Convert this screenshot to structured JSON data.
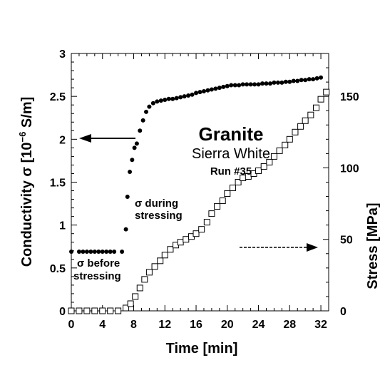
{
  "chart_data": {
    "type": "scatter",
    "title": "Granite",
    "subtitle": "Sierra White",
    "run_label": "Run #35",
    "xlabel": "Time [min]",
    "ylabel_left_prefix": "Conductivity σ [10",
    "ylabel_left_exp": "−6",
    "ylabel_left_suffix": " S/m]",
    "ylabel_right": "Stress [MPa]",
    "xlim": [
      0,
      33
    ],
    "ylim_left": [
      0,
      3
    ],
    "ylim_right": [
      0,
      180
    ],
    "x_ticks": [
      0,
      4,
      8,
      12,
      16,
      20,
      24,
      28,
      32
    ],
    "x_tick_labels": [
      "0",
      "4",
      "8",
      "12",
      "16",
      "20",
      "24",
      "28",
      "32"
    ],
    "y_left_ticks": [
      0,
      0.5,
      1,
      1.5,
      2,
      2.5,
      3
    ],
    "y_left_tick_labels": [
      "0",
      "0.5",
      "1",
      "1.5",
      "2",
      "2.5",
      "3"
    ],
    "y_right_ticks": [
      0,
      50,
      100,
      150
    ],
    "y_right_tick_labels": [
      "0",
      "50",
      "100",
      "150"
    ],
    "grid": false,
    "annotations": {
      "sigma_before_line1": "σ before",
      "sigma_before_line2": "stressing",
      "sigma_during_line1": "σ during",
      "sigma_during_line2": "stressing"
    },
    "series": [
      {
        "marker": "filled-circle",
        "axis": "left",
        "x": [
          0,
          1,
          1.5,
          2,
          2.5,
          3,
          3.5,
          4,
          4.5,
          5,
          5.5,
          6.5,
          7,
          7.2,
          7.5,
          7.8,
          8.1,
          8.4,
          8.8,
          9.2,
          9.6,
          10,
          10.5,
          11,
          11.5,
          12,
          12.5,
          13,
          13.5,
          14,
          14.5,
          15,
          15.5,
          16,
          16.5,
          17,
          17.5,
          18,
          18.5,
          19,
          19.5,
          20,
          20.5,
          21,
          21.5,
          22,
          22.5,
          23,
          23.5,
          24,
          24.5,
          25,
          25.5,
          26,
          26.5,
          27,
          27.5,
          28,
          28.5,
          29,
          29.5,
          30,
          30.5,
          31,
          31.5,
          32
        ],
        "y": [
          0.69,
          0.69,
          0.69,
          0.69,
          0.69,
          0.69,
          0.69,
          0.69,
          0.69,
          0.69,
          0.69,
          0.69,
          0.95,
          1.33,
          1.62,
          1.76,
          1.9,
          1.95,
          2.1,
          2.22,
          2.32,
          2.38,
          2.42,
          2.44,
          2.45,
          2.46,
          2.47,
          2.47,
          2.48,
          2.49,
          2.5,
          2.51,
          2.52,
          2.54,
          2.55,
          2.56,
          2.57,
          2.58,
          2.59,
          2.6,
          2.61,
          2.62,
          2.63,
          2.63,
          2.63,
          2.64,
          2.64,
          2.64,
          2.64,
          2.64,
          2.65,
          2.65,
          2.65,
          2.66,
          2.66,
          2.66,
          2.67,
          2.67,
          2.68,
          2.68,
          2.69,
          2.69,
          2.7,
          2.7,
          2.71,
          2.72
        ]
      },
      {
        "marker": "open-square",
        "axis": "right",
        "x": [
          0,
          1,
          2,
          3,
          4,
          5,
          6,
          7,
          7.6,
          8.2,
          8.8,
          9.4,
          10,
          10.7,
          11.4,
          12,
          12.7,
          13.4,
          14,
          14.7,
          15.4,
          16,
          16.7,
          17.4,
          18,
          18.7,
          19.4,
          20,
          20.7,
          21.4,
          22,
          22.7,
          23.4,
          24,
          24.7,
          25.4,
          26,
          26.7,
          27.4,
          28,
          28.7,
          29.4,
          30,
          30.7,
          31.4,
          32,
          32.7
        ],
        "y": [
          0,
          0,
          0,
          0,
          0,
          0,
          0,
          2,
          5,
          10,
          16,
          22,
          27,
          31,
          35,
          39,
          43,
          46,
          48,
          50,
          52,
          54,
          57,
          62,
          68,
          73,
          77,
          82,
          86,
          90,
          93,
          94,
          96,
          98,
          101,
          104,
          108,
          112,
          116,
          120,
          125,
          129,
          133,
          137,
          142,
          148,
          153
        ]
      }
    ]
  }
}
